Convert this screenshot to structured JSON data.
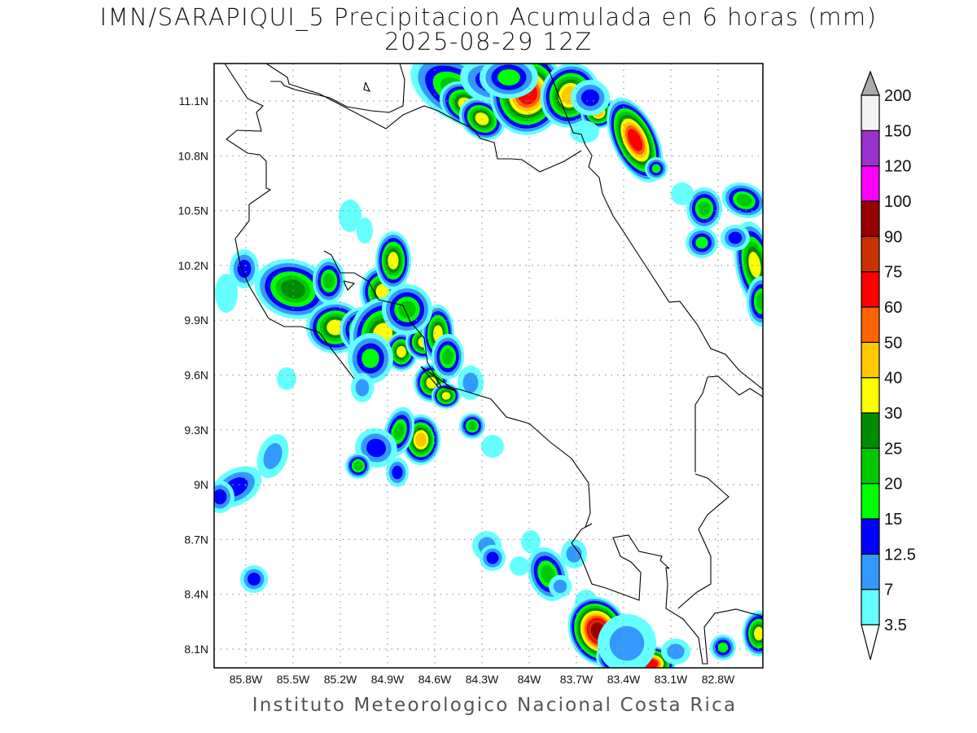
{
  "title": {
    "line1": "IMN/SARAPIQUI_5 Precipitacion Acumulada en 6 horas (mm)",
    "line2": "2025-08-29 12Z"
  },
  "footer": "Instituto Meteorologico Nacional Costa Rica",
  "map": {
    "lon_labels": [
      "85.8W",
      "85.5W",
      "85.2W",
      "84.9W",
      "84.6W",
      "84.3W",
      "84W",
      "83.7W",
      "83.4W",
      "83.1W",
      "82.8W"
    ],
    "lat_labels": [
      "11.1N",
      "10.8N",
      "10.5N",
      "10.2N",
      "9.9N",
      "9.6N",
      "9.3N",
      "9N",
      "8.7N",
      "8.4N",
      "8.1N"
    ],
    "grid": "dotted"
  },
  "colorbar": {
    "labels": [
      "3.5",
      "7",
      "12.5",
      "15",
      "20",
      "25",
      "30",
      "40",
      "50",
      "60",
      "75",
      "90",
      "100",
      "120",
      "150",
      "200"
    ],
    "colors": [
      "#66ffff",
      "#3399ff",
      "#0000ff",
      "#00ff00",
      "#00c800",
      "#008c00",
      "#ffff00",
      "#ffc800",
      "#ff6400",
      "#ff0000",
      "#c83200",
      "#960000",
      "#ff00ff",
      "#9932cc",
      "#f4f4f4"
    ],
    "over_color": "#aaaaaa",
    "under_color": "#ffffff"
  }
}
